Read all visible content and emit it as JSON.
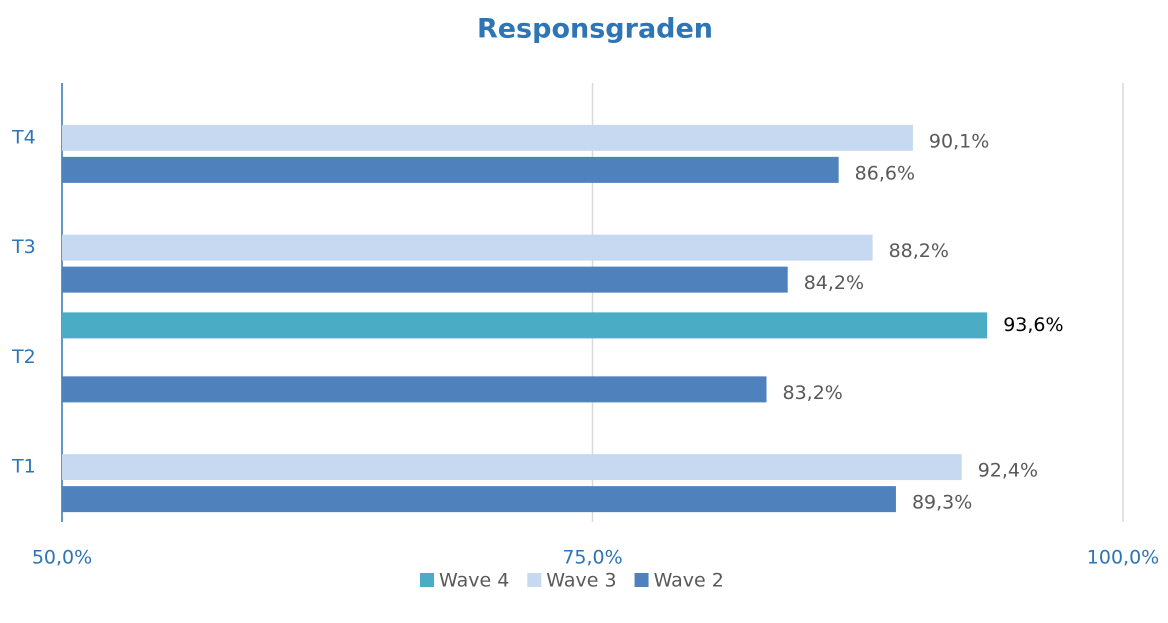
{
  "chart_data": {
    "type": "hbar",
    "title": "Responsgraden",
    "categories": [
      "T1",
      "T2",
      "T3",
      "T4"
    ],
    "series": [
      {
        "name": "Wave 4",
        "color": "#4bacc6",
        "values": [
          null,
          93.6,
          null,
          null
        ],
        "value_labels": [
          null,
          "93,6%",
          null,
          null
        ]
      },
      {
        "name": "Wave 3",
        "color": "#c6d9f1",
        "values": [
          92.4,
          null,
          88.2,
          90.1
        ],
        "value_labels": [
          "92,4%",
          null,
          "88,2%",
          "90,1%"
        ]
      },
      {
        "name": "Wave 2",
        "color": "#4f81bd",
        "values": [
          89.3,
          83.2,
          84.2,
          86.6
        ],
        "value_labels": [
          "89,3%",
          "83,2%",
          "84,2%",
          "86,6%"
        ]
      }
    ],
    "xlim": [
      50,
      100
    ],
    "xticks": [
      {
        "value": 50,
        "label": "50,0%"
      },
      {
        "value": 75,
        "label": "75,0%"
      },
      {
        "value": 100,
        "label": "100,0%"
      }
    ],
    "grid": true,
    "legend": "bottom"
  }
}
